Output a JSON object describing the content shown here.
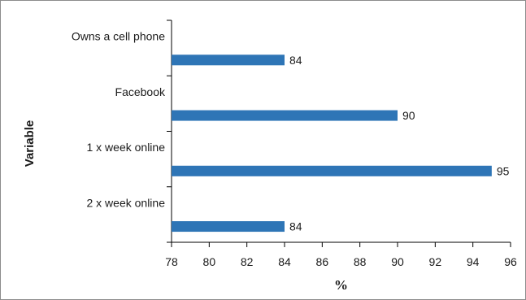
{
  "chart_data": {
    "type": "bar",
    "orientation": "horizontal",
    "categories": [
      "Owns a cell phone",
      "Facebook",
      "1 x week online",
      "2 x week online"
    ],
    "values": [
      84,
      90,
      95,
      84
    ],
    "data_labels": [
      "84",
      "90",
      "95",
      "84"
    ],
    "xlabel": "%",
    "ylabel": "Variable",
    "xlim": [
      78,
      96
    ],
    "xticks": [
      "78",
      "80",
      "82",
      "84",
      "86",
      "88",
      "90",
      "92",
      "94",
      "96"
    ],
    "grid": false,
    "legend": "none",
    "bar_color": "#2e75b6"
  }
}
